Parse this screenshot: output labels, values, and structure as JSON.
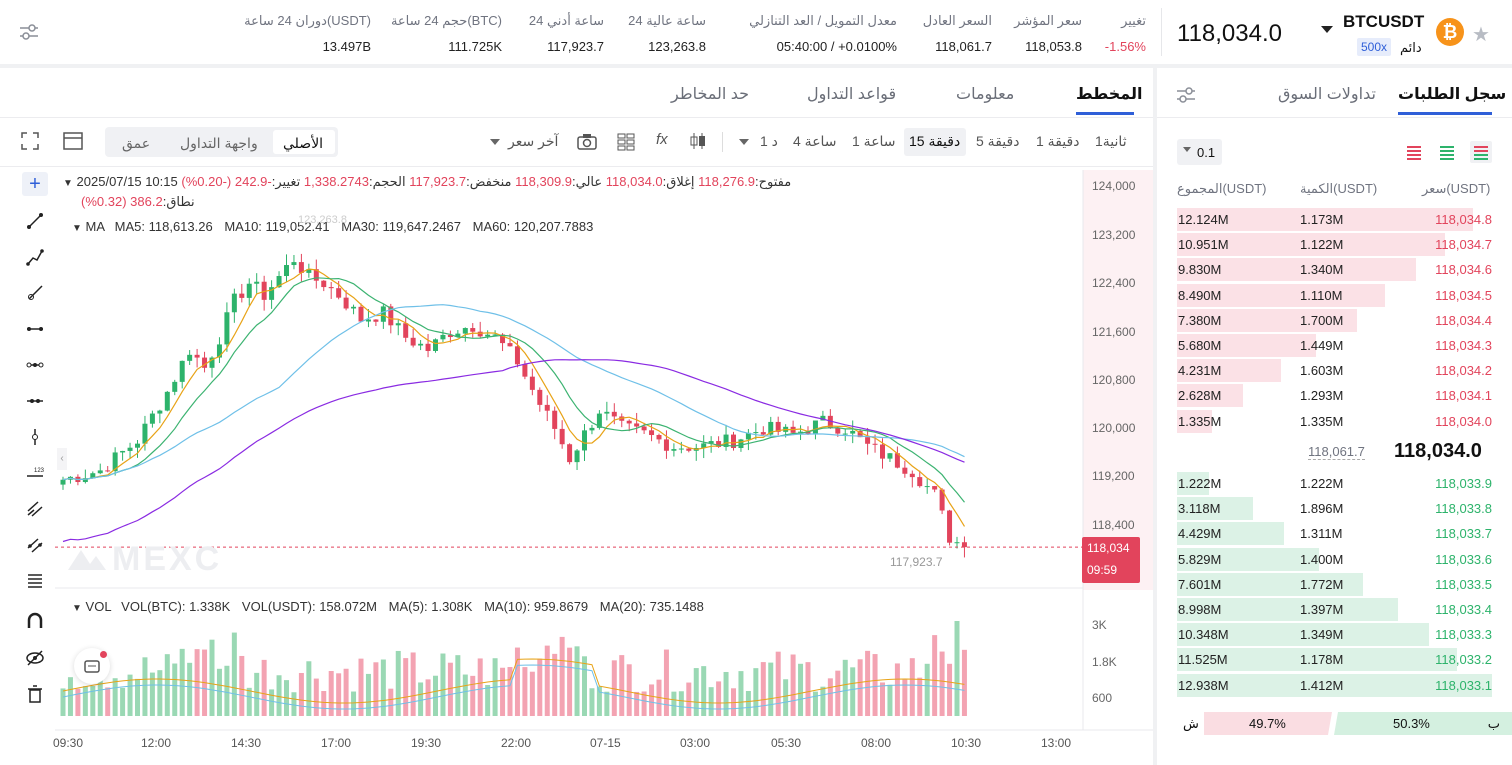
{
  "header": {
    "symbol": "BTCUSDT",
    "type": "دائم",
    "leverage": "500x",
    "price": "118,034.0",
    "stats": [
      {
        "label": "تغيير",
        "value": "-1.56%"
      },
      {
        "label": "سعر المؤشر",
        "value": "118,053.8"
      },
      {
        "label": "السعر العادل",
        "value": "118,061.7"
      },
      {
        "label": "معدل التمويل / العد التنازلي",
        "value": "05:40:00  /  +0.0100%"
      },
      {
        "label": "24 ساعة عالية",
        "value": "123,263.8"
      },
      {
        "label": "24 ساعة أدني",
        "value": "117,923.7"
      },
      {
        "label": "حجم 24 ساعة(BTC)",
        "value": "111.725K"
      },
      {
        "label": "دوران 24 ساعة(USDT)",
        "value": "13.497B"
      }
    ]
  },
  "tabs": {
    "chart": "المخطط",
    "info": "معلومات",
    "rules": "قواعد التداول",
    "risk": "حد المخاطر"
  },
  "toolbar": {
    "timeframes": [
      "ثانية1",
      "دقيقة 1",
      "دقيقة 5",
      "دقيقة 15",
      "ساعة 1",
      "ساعة 4",
      "د 1"
    ],
    "active_tf": "دقيقة 15",
    "price_type": "آخر سعر",
    "views": [
      "الأصلي",
      "واجهة التداول",
      "عمق"
    ]
  },
  "legend": {
    "date_label": "2025/07/15 10:15",
    "open_label": "مفتوح:",
    "open": "118,276.9",
    "close_label": "إغلاق:",
    "close": "118,034.0",
    "high_label": "عالي:",
    "high": "118,309.9",
    "low_label": "منخفض:",
    "low": "117,923.7",
    "vol_label": "الحجم:",
    "vol": "1,338.2743",
    "chg_label": "تغيير:",
    "chg": "-242.9 (-0.20%)",
    "range_label": "نطاق:",
    "range": "386.2 (0.32%)",
    "ma_title": "MA",
    "ma5": "MA5: 118,613.26",
    "ma10": "MA10: 119,052.41",
    "ma30": "MA30: 119,647.2467",
    "ma60": "MA60: 120,207.7883",
    "vol_title": "VOL",
    "vol_btc": "VOL(BTC): 1.338K",
    "vol_usdt": "VOL(USDT): 158.072M",
    "vma5": "MA(5): 1.308K",
    "vma10": "MA(10): 959.8679",
    "vma20": "MA(20): 735.1488"
  },
  "axis": {
    "y": [
      "124,000",
      "123,200",
      "122,400",
      "121,600",
      "120,800",
      "120,000",
      "119,200",
      "118,400"
    ],
    "vol_y": [
      "3K",
      "1.8K",
      "600"
    ],
    "x": [
      "09:30",
      "12:00",
      "14:30",
      "17:00",
      "19:30",
      "22:00",
      "07-15",
      "03:00",
      "05:30",
      "08:00",
      "10:30",
      "13:00"
    ],
    "last_price": "118,034",
    "countdown": "09:59",
    "low_marker": "117,923.7",
    "high_marker": "123,263.8"
  },
  "watermark": "MEXC",
  "orderbook": {
    "tab_book": "سجل الطلبات",
    "tab_trades": "تداولات السوق",
    "precision": "0.1",
    "col_price": "سعر(USDT)",
    "col_qty": "الكمية(USDT)",
    "col_total": "المجموع(USDT)",
    "asks": [
      {
        "price": "118,034.8",
        "qty": "1.173M",
        "total": "12.124M",
        "depth": 0.94
      },
      {
        "price": "118,034.7",
        "qty": "1.122M",
        "total": "10.951M",
        "depth": 0.85
      },
      {
        "price": "118,034.6",
        "qty": "1.340M",
        "total": "9.830M",
        "depth": 0.76
      },
      {
        "price": "118,034.5",
        "qty": "1.110M",
        "total": "8.490M",
        "depth": 0.66
      },
      {
        "price": "118,034.4",
        "qty": "1.700M",
        "total": "7.380M",
        "depth": 0.57
      },
      {
        "price": "118,034.3",
        "qty": "1.449M",
        "total": "5.680M",
        "depth": 0.44
      },
      {
        "price": "118,034.2",
        "qty": "1.603M",
        "total": "4.231M",
        "depth": 0.33
      },
      {
        "price": "118,034.1",
        "qty": "1.293M",
        "total": "2.628M",
        "depth": 0.21
      },
      {
        "price": "118,034.0",
        "qty": "1.335M",
        "total": "1.335M",
        "depth": 0.11
      }
    ],
    "mid_price": "118,034.0",
    "mark_price": "118,061.7",
    "bids": [
      {
        "price": "118,033.9",
        "qty": "1.222M",
        "total": "1.222M",
        "depth": 0.1
      },
      {
        "price": "118,033.8",
        "qty": "1.896M",
        "total": "3.118M",
        "depth": 0.24
      },
      {
        "price": "118,033.7",
        "qty": "1.311M",
        "total": "4.429M",
        "depth": 0.34
      },
      {
        "price": "118,033.6",
        "qty": "1.400M",
        "total": "5.829M",
        "depth": 0.45
      },
      {
        "price": "118,033.5",
        "qty": "1.772M",
        "total": "7.601M",
        "depth": 0.59
      },
      {
        "price": "118,033.4",
        "qty": "1.397M",
        "total": "8.998M",
        "depth": 0.7
      },
      {
        "price": "118,033.3",
        "qty": "1.349M",
        "total": "10.348M",
        "depth": 0.8
      },
      {
        "price": "118,033.2",
        "qty": "1.178M",
        "total": "11.525M",
        "depth": 0.89
      },
      {
        "price": "118,033.1",
        "qty": "1.412M",
        "total": "12.938M",
        "depth": 1.0
      }
    ],
    "buy_label": "ب",
    "buy_pct": "50.3%",
    "sell_label": "ش",
    "sell_pct": "49.7%"
  },
  "colors": {
    "up": "#2db36b",
    "down": "#e2445c",
    "ma5": "#e8a317",
    "ma10": "#3cb371",
    "ma30": "#6fc0e8",
    "ma60": "#8a2be2",
    "accent": "#2f5fd8"
  }
}
